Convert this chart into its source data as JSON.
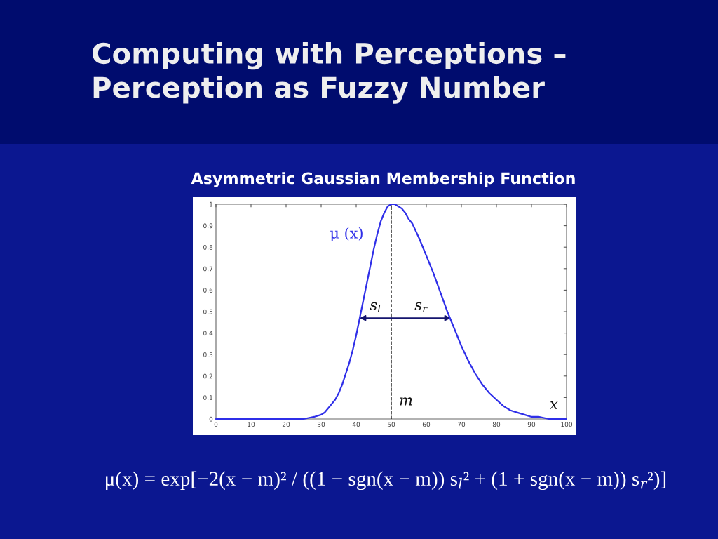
{
  "chart_data": {
    "type": "line",
    "title": "Computing with Perceptions – Perception as Fuzzy Number",
    "subtitle": "Asymmetric Gaussian Membership Function",
    "xlabel": "x",
    "x": [
      0,
      10,
      20,
      25,
      28,
      30,
      31,
      32,
      33,
      34,
      35,
      36,
      37,
      38,
      39,
      40,
      41,
      42,
      43,
      44,
      45,
      46,
      47,
      48,
      49,
      50,
      51,
      52,
      53,
      54,
      55,
      56,
      58,
      60,
      62,
      64,
      66,
      68,
      70,
      72,
      74,
      76,
      78,
      80,
      82,
      84,
      86,
      88,
      90,
      92,
      95,
      100
    ],
    "series": [
      {
        "name": "μ (x)",
        "color": "#2f2fe8",
        "values": [
          0,
          0,
          0,
          0,
          0.01,
          0.02,
          0.03,
          0.05,
          0.07,
          0.09,
          0.12,
          0.16,
          0.21,
          0.26,
          0.32,
          0.39,
          0.47,
          0.55,
          0.63,
          0.71,
          0.79,
          0.86,
          0.92,
          0.96,
          0.99,
          1,
          1,
          0.99,
          0.98,
          0.96,
          0.93,
          0.91,
          0.84,
          0.76,
          0.68,
          0.59,
          0.5,
          0.42,
          0.34,
          0.27,
          0.21,
          0.16,
          0.12,
          0.09,
          0.06,
          0.04,
          0.03,
          0.02,
          0.01,
          0.01,
          0,
          0
        ]
      }
    ],
    "xlim": [
      0,
      100
    ],
    "ylim": [
      0,
      1
    ],
    "xticks": [
      0,
      10,
      20,
      30,
      40,
      50,
      60,
      70,
      80,
      90,
      100
    ],
    "yticks": [
      0,
      0.1,
      0.2,
      0.3,
      0.4,
      0.5,
      0.6,
      0.7,
      0.8,
      0.9,
      1
    ],
    "ref_lines": [
      {
        "axis": "x",
        "value": 50,
        "label": "m",
        "color": "#000000",
        "line_style": "dashed"
      }
    ],
    "annotations": [
      {
        "text": "s$_{l}$",
        "x": 41,
        "y": 0.47
      },
      {
        "text": "s$_{r}$",
        "x": 67,
        "y": 0.47
      },
      "μ(x) = exp[−2(x − m)² / ((1 − sgn(x − m)) s$_{l}$² + (1 + sgn(x − m)) s$_{r}$²)]"
    ]
  }
}
